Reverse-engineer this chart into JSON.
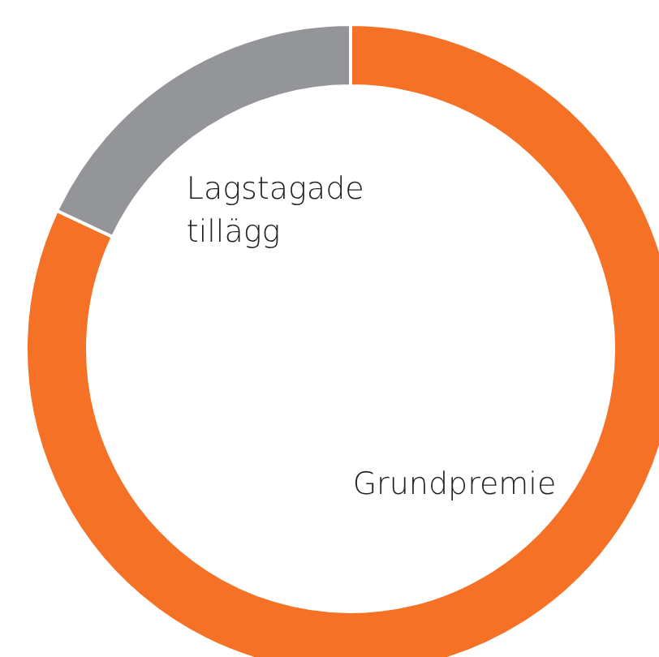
{
  "chart_data": {
    "type": "donut",
    "categories": [
      "Grundpremie",
      "Lagstagade tillägg"
    ],
    "values": [
      82,
      18
    ],
    "colors": [
      "#f47125",
      "#939598"
    ],
    "legend": false
  }
}
